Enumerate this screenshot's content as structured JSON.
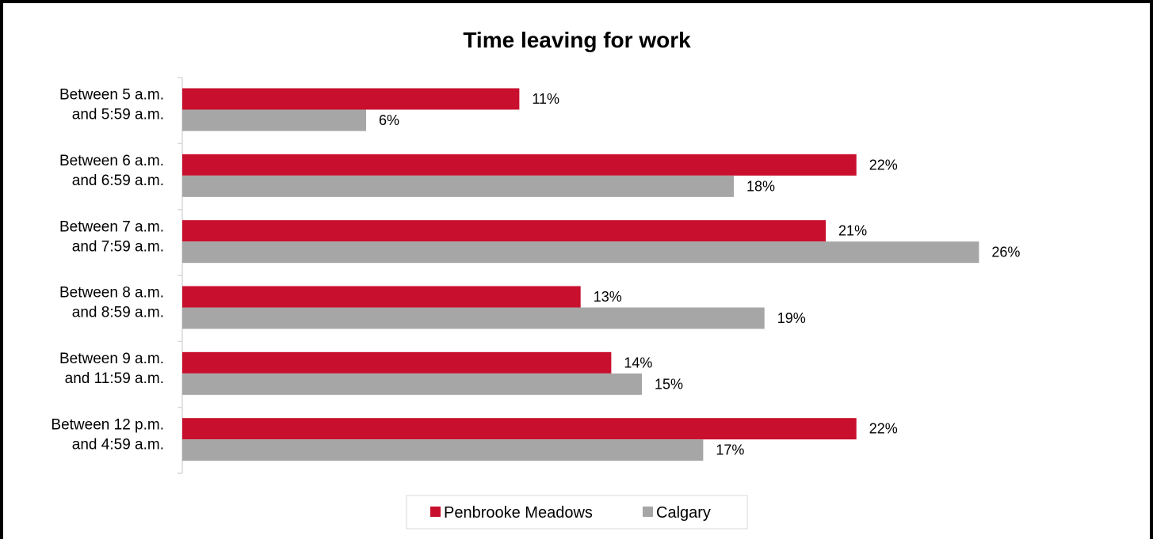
{
  "chart_data": {
    "type": "bar",
    "orientation": "horizontal",
    "title": "Time leaving for work",
    "categories": [
      [
        "Between 5 a.m.",
        "and 5:59 a.m."
      ],
      [
        "Between 6 a.m.",
        "and 6:59 a.m."
      ],
      [
        "Between 7 a.m.",
        "and 7:59 a.m."
      ],
      [
        "Between 8 a.m.",
        "and 8:59 a.m."
      ],
      [
        "Between 9 a.m.",
        "and 11:59 a.m."
      ],
      [
        "Between 12 p.m.",
        "and 4:59 a.m."
      ]
    ],
    "series": [
      {
        "name": "Penbrooke Meadows",
        "color": "#c8102e",
        "values": [
          11,
          22,
          21,
          13,
          14,
          22
        ],
        "labels": [
          "11%",
          "22%",
          "21%",
          "13%",
          "14%",
          "22%"
        ]
      },
      {
        "name": "Calgary",
        "color": "#a6a6a6",
        "values": [
          6,
          18,
          26,
          19,
          15,
          17
        ],
        "labels": [
          "6%",
          "18%",
          "26%",
          "19%",
          "15%",
          "17%"
        ]
      }
    ],
    "xlim": [
      0,
      26.3
    ],
    "grid": false,
    "legend": "bottom"
  }
}
